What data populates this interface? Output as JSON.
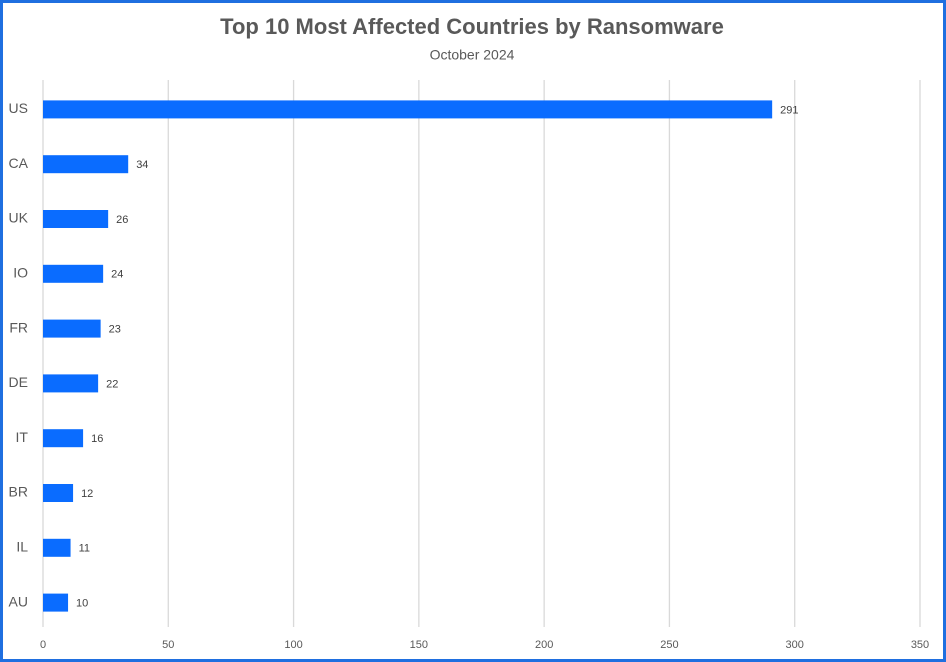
{
  "chart_data": {
    "type": "bar",
    "orientation": "horizontal",
    "title": "Top 10 Most Affected Countries by Ransomware",
    "subtitle": "October 2024",
    "categories": [
      "US",
      "CA",
      "UK",
      "IO",
      "FR",
      "DE",
      "IT",
      "BR",
      "IL",
      "AU"
    ],
    "values": [
      291,
      34,
      26,
      24,
      23,
      22,
      16,
      12,
      11,
      10
    ],
    "color": "#0a6cff",
    "xlim": [
      0,
      350
    ],
    "xticks": [
      0,
      50,
      100,
      150,
      200,
      250,
      300,
      350
    ],
    "grid": true
  }
}
